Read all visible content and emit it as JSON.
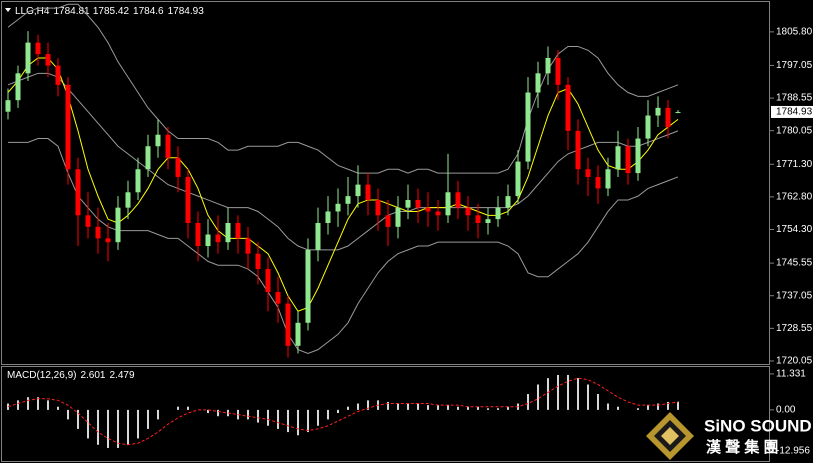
{
  "chart_data": [
    {
      "type": "candlestick",
      "symbol": "LLG,H4",
      "ohlc_label": [
        1784.81,
        1785.42,
        1784.6,
        1784.93
      ],
      "last_price": 1784.93,
      "ylim": [
        1719.0,
        1812.8
      ],
      "yticks": [
        {
          "value": 1805.8,
          "label": "1805.80"
        },
        1797.05,
        1788.55,
        1780.05,
        {
          "value": 1771.3,
          "label": "1771.30"
        },
        {
          "value": 1762.8,
          "label": "1762.80"
        },
        {
          "value": 1754.3,
          "label": "1754.30"
        },
        1745.55,
        1737.05,
        1728.55,
        1720.05
      ],
      "up_color": "#8fe88f",
      "down_color": "#ff0000",
      "candles": [
        [
          1785,
          1791,
          1783,
          1788
        ],
        [
          1788,
          1797,
          1786,
          1795
        ],
        [
          1795,
          1806,
          1793,
          1803
        ],
        [
          1803,
          1805,
          1797,
          1800
        ],
        [
          1800,
          1803,
          1794,
          1797
        ],
        [
          1797,
          1799,
          1789,
          1792
        ],
        [
          1792,
          1794,
          1766,
          1770
        ],
        [
          1770,
          1773,
          1750,
          1758
        ],
        [
          1758,
          1764,
          1752,
          1755
        ],
        [
          1755,
          1760,
          1748,
          1752
        ],
        [
          1752,
          1756,
          1746,
          1751
        ],
        [
          1751,
          1763,
          1749,
          1760
        ],
        [
          1760,
          1767,
          1757,
          1764
        ],
        [
          1764,
          1773,
          1762,
          1770
        ],
        [
          1770,
          1779,
          1768,
          1776
        ],
        [
          1776,
          1783,
          1773,
          1779
        ],
        [
          1779,
          1781,
          1770,
          1773
        ],
        [
          1773,
          1776,
          1764,
          1768
        ],
        [
          1768,
          1770,
          1752,
          1756
        ],
        [
          1756,
          1759,
          1746,
          1750
        ],
        [
          1750,
          1757,
          1747,
          1753
        ],
        [
          1753,
          1758,
          1748,
          1751
        ],
        [
          1751,
          1760,
          1749,
          1756
        ],
        [
          1756,
          1758,
          1748,
          1752
        ],
        [
          1752,
          1755,
          1744,
          1748
        ],
        [
          1748,
          1751,
          1740,
          1744
        ],
        [
          1744,
          1747,
          1733,
          1738
        ],
        [
          1738,
          1742,
          1730,
          1735
        ],
        [
          1735,
          1737,
          1721,
          1724
        ],
        [
          1724,
          1733,
          1722,
          1730
        ],
        [
          1730,
          1752,
          1728,
          1749
        ],
        [
          1749,
          1760,
          1746,
          1756
        ],
        [
          1756,
          1763,
          1753,
          1759
        ],
        [
          1759,
          1765,
          1755,
          1761
        ],
        [
          1761,
          1768,
          1758,
          1763
        ],
        [
          1763,
          1771,
          1760,
          1766
        ],
        [
          1766,
          1769,
          1758,
          1762
        ],
        [
          1762,
          1765,
          1754,
          1758
        ],
        [
          1758,
          1762,
          1750,
          1755
        ],
        [
          1755,
          1763,
          1752,
          1760
        ],
        [
          1760,
          1766,
          1757,
          1762
        ],
        [
          1762,
          1765,
          1756,
          1760
        ],
        [
          1760,
          1764,
          1755,
          1759
        ],
        [
          1759,
          1762,
          1754,
          1758
        ],
        [
          1758,
          1774,
          1756,
          1764
        ],
        [
          1764,
          1767,
          1757,
          1760
        ],
        [
          1760,
          1763,
          1754,
          1758
        ],
        [
          1758,
          1761,
          1752,
          1756
        ],
        [
          1756,
          1760,
          1753,
          1757
        ],
        [
          1757,
          1763,
          1755,
          1760
        ],
        [
          1760,
          1766,
          1758,
          1763
        ],
        [
          1763,
          1775,
          1761,
          1772
        ],
        [
          1772,
          1794,
          1770,
          1790
        ],
        [
          1790,
          1798,
          1786,
          1795
        ],
        [
          1795,
          1802,
          1792,
          1799
        ],
        [
          1799,
          1801,
          1788,
          1792
        ],
        [
          1792,
          1794,
          1775,
          1780
        ],
        [
          1780,
          1783,
          1766,
          1770
        ],
        [
          1770,
          1773,
          1763,
          1768
        ],
        [
          1768,
          1771,
          1761,
          1765
        ],
        [
          1765,
          1773,
          1763,
          1770
        ],
        [
          1770,
          1780,
          1768,
          1776
        ],
        [
          1776,
          1778,
          1766,
          1769
        ],
        [
          1769,
          1781,
          1767,
          1778
        ],
        [
          1778,
          1788,
          1776,
          1784
        ],
        [
          1784,
          1789,
          1781,
          1786
        ],
        [
          1786,
          1788,
          1778,
          1781
        ],
        [
          1784.81,
          1785.42,
          1784.6,
          1784.93
        ]
      ],
      "lines": [
        {
          "color": "#9a9a9a",
          "values": [
            1807,
            1809,
            1811,
            1812,
            1812,
            1812,
            1813,
            1813,
            1810,
            1807,
            1803,
            1798,
            1794,
            1790,
            1786,
            1783,
            1780,
            1778,
            1778,
            1778,
            1778,
            1777,
            1775,
            1775,
            1776,
            1776,
            1776,
            1776,
            1777,
            1777,
            1776,
            1775,
            1773,
            1771,
            1770,
            1769,
            1769,
            1769,
            1770,
            1770,
            1769,
            1770,
            1770,
            1769,
            1769,
            1769,
            1769,
            1769,
            1769,
            1769,
            1770,
            1774,
            1783,
            1790,
            1796,
            1800,
            1802,
            1802,
            1801,
            1799,
            1795,
            1792,
            1790,
            1789,
            1789,
            1790,
            1791,
            1792
          ]
        },
        {
          "color": "#9a9a9a",
          "values": [
            1792,
            1793,
            1794,
            1795,
            1795,
            1794,
            1791,
            1788,
            1785,
            1782,
            1779,
            1776,
            1774,
            1772,
            1770,
            1768,
            1766,
            1765,
            1764,
            1763,
            1762,
            1761,
            1760,
            1760,
            1760,
            1759,
            1757,
            1755,
            1752,
            1750,
            1749,
            1749,
            1749,
            1749,
            1750,
            1752,
            1754,
            1756,
            1758,
            1759,
            1759,
            1760,
            1760,
            1760,
            1760,
            1760,
            1760,
            1760,
            1760,
            1760,
            1760,
            1761,
            1763,
            1766,
            1769,
            1772,
            1774,
            1775,
            1776,
            1777,
            1777,
            1777,
            1776,
            1776,
            1777,
            1778,
            1779,
            1780
          ]
        },
        {
          "color": "#9a9a9a",
          "values": [
            1777,
            1777,
            1777,
            1778,
            1778,
            1776,
            1769,
            1763,
            1760,
            1757,
            1755,
            1754,
            1754,
            1754,
            1754,
            1753,
            1752,
            1752,
            1750,
            1748,
            1746,
            1745,
            1745,
            1745,
            1744,
            1742,
            1738,
            1734,
            1727,
            1723,
            1722,
            1723,
            1725,
            1727,
            1730,
            1735,
            1739,
            1743,
            1746,
            1748,
            1749,
            1750,
            1750,
            1751,
            1751,
            1751,
            1751,
            1751,
            1751,
            1751,
            1750,
            1748,
            1743,
            1742,
            1742,
            1744,
            1746,
            1748,
            1751,
            1755,
            1759,
            1762,
            1762,
            1763,
            1765,
            1766,
            1767,
            1768
          ]
        },
        {
          "color": "#ffff00",
          "values": [
            1790,
            1793,
            1797,
            1799,
            1799,
            1796,
            1789,
            1780,
            1770,
            1763,
            1757,
            1756,
            1758,
            1761,
            1765,
            1770,
            1773,
            1773,
            1770,
            1765,
            1758,
            1754,
            1752,
            1752,
            1752,
            1750,
            1748,
            1743,
            1737,
            1733,
            1734,
            1739,
            1745,
            1751,
            1757,
            1761,
            1762,
            1762,
            1761,
            1760,
            1759,
            1759,
            1760,
            1760,
            1760,
            1761,
            1760,
            1759,
            1758,
            1758,
            1759,
            1762,
            1768,
            1776,
            1784,
            1790,
            1791,
            1787,
            1781,
            1775,
            1771,
            1770,
            1770,
            1772,
            1775,
            1779,
            1781,
            1783
          ]
        }
      ],
      "watermark": {
        "title": "SiNO SOUND",
        "subtitle": "漢 聲 集 團"
      }
    },
    {
      "type": "macd",
      "title": "MACD(12,26,9)",
      "value_labels_header": [
        2.601,
        2.479
      ],
      "ylim": [
        -15.8,
        13.2
      ],
      "yticks": [
        11.331,
        {
          "value": 0,
          "label": "0.00"
        },
        -12.956
      ],
      "histogram_color": "#d8d8d8",
      "signal_color": "#ff2020",
      "histogram": [
        2,
        3,
        4,
        4,
        3,
        1,
        -3,
        -6,
        -9,
        -11,
        -12,
        -12,
        -11,
        -9,
        -6,
        -3,
        0,
        1,
        1,
        0,
        -1,
        -2,
        -2,
        -3,
        -3,
        -4,
        -5,
        -6,
        -7,
        -8,
        -7,
        -5,
        -3,
        -1,
        1,
        2,
        3,
        3,
        2.5,
        2,
        2,
        2,
        1.5,
        1.5,
        1.5,
        1,
        1,
        1,
        0.5,
        0.5,
        1,
        2,
        5,
        8,
        10,
        11,
        11,
        10,
        8,
        5,
        2,
        1,
        0,
        0.5,
        1.5,
        2,
        2.5,
        2.601
      ],
      "signal": [
        1,
        2,
        3,
        3.5,
        3.5,
        3,
        1.5,
        -1,
        -4,
        -7,
        -9,
        -10.5,
        -11,
        -10.5,
        -9,
        -7,
        -4.5,
        -2.5,
        -1,
        0,
        0,
        -0.5,
        -1,
        -1.5,
        -2,
        -2.5,
        -3,
        -4,
        -5,
        -6,
        -6.5,
        -6,
        -5,
        -3.5,
        -2,
        -0.5,
        0.5,
        1.5,
        2,
        2,
        2,
        2,
        2,
        1.5,
        1.5,
        1.5,
        1,
        1,
        1,
        1,
        1,
        1,
        2,
        3.5,
        5.5,
        7.5,
        9,
        10,
        9.5,
        8,
        6,
        4,
        2.5,
        1.5,
        1.5,
        1.5,
        2,
        2.479
      ]
    }
  ]
}
